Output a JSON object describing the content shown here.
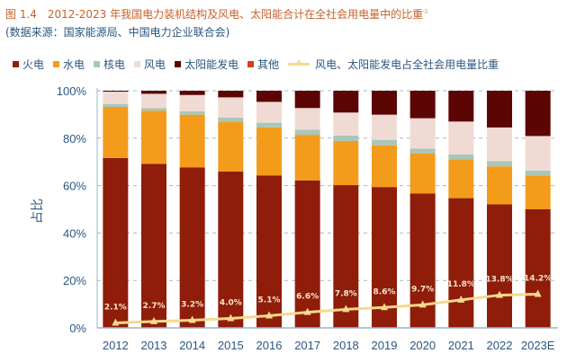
{
  "chart_data": {
    "type": "bar",
    "stacked": true,
    "title": "图 1.4　2012-2023 年我国电力装机结构及风电、太阳能合计在全社会用电量中的比重",
    "title_footnote": "①",
    "subtitle": "(数据来源：国家能源局、中国电力企业联合会)",
    "xlabel": "",
    "ylabel": "占比",
    "ylim": [
      0,
      100
    ],
    "yticks": [
      "0%",
      "20%",
      "40%",
      "60%",
      "80%",
      "100%"
    ],
    "grid": "horizontal dashed",
    "legend_position": "top",
    "categories": [
      "2012",
      "2013",
      "2014",
      "2015",
      "2016",
      "2017",
      "2018",
      "2019",
      "2020",
      "2021",
      "2022",
      "2023E"
    ],
    "series": [
      {
        "name": "火电",
        "color": "#8f1d0a",
        "values": [
          71.6,
          69.2,
          67.7,
          65.9,
          64.3,
          62.2,
          60.2,
          59.4,
          56.7,
          54.7,
          52.1,
          50.0
        ]
      },
      {
        "name": "水电",
        "color": "#f39c1c",
        "values": [
          21.6,
          22.4,
          22.2,
          21.0,
          20.2,
          19.2,
          18.6,
          17.6,
          16.8,
          16.3,
          16.0,
          14.3
        ]
      },
      {
        "name": "核电",
        "color": "#a9c6b8",
        "values": [
          1.2,
          1.1,
          1.4,
          1.8,
          2.0,
          2.2,
          2.3,
          2.3,
          2.1,
          2.2,
          2.2,
          2.0
        ]
      },
      {
        "name": "风电",
        "color": "#f0dbd4",
        "values": [
          5.2,
          6.0,
          6.9,
          8.5,
          8.8,
          9.1,
          9.7,
          10.6,
          12.8,
          13.8,
          14.2,
          14.6
        ]
      },
      {
        "name": "太阳能发电",
        "color": "#5c0505",
        "values": [
          0.4,
          1.3,
          1.8,
          2.8,
          4.7,
          7.3,
          9.2,
          10.1,
          11.6,
          13.0,
          15.5,
          19.1
        ]
      },
      {
        "name": "其他",
        "color": "#d2401c",
        "values": [
          0,
          0,
          0,
          0,
          0,
          0,
          0,
          0,
          0,
          0,
          0,
          0
        ]
      }
    ],
    "line": {
      "name": "风电、太阳能发电占全社会用电量比重",
      "color": "#f6d98c",
      "marker": "triangle",
      "values": [
        2.1,
        2.7,
        3.2,
        4.0,
        5.1,
        6.6,
        7.8,
        8.6,
        9.7,
        11.8,
        13.8,
        14.2
      ],
      "labels": [
        "2.1%",
        "2.7%",
        "3.2%",
        "4.0%",
        "5.1%",
        "6.6%",
        "7.8%",
        "8.6%",
        "9.7%",
        "11.8%",
        "13.8%",
        "14.2%"
      ]
    }
  }
}
